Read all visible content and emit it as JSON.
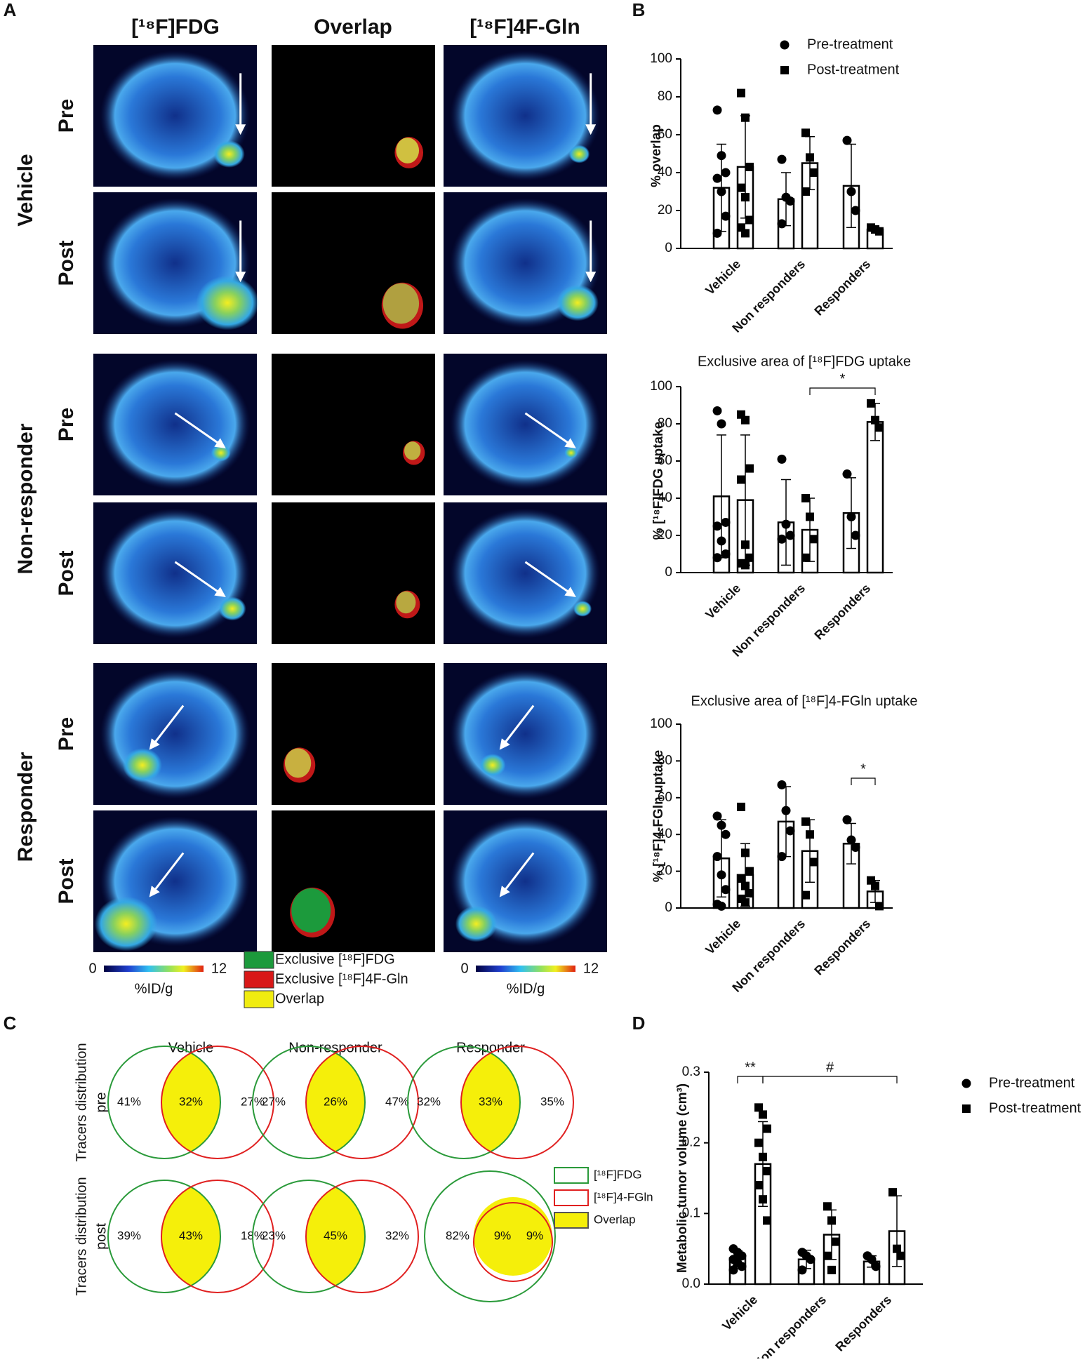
{
  "panel_labels": [
    "A",
    "B",
    "C",
    "D"
  ],
  "panel_a": {
    "columns": [
      "[¹⁸F]FDG",
      "Overlap",
      "[¹⁸F]4F-Gln"
    ],
    "groups": [
      {
        "name": "Vehicle",
        "rows": [
          "Pre",
          "Post"
        ]
      },
      {
        "name": "Non-responder",
        "rows": [
          "Pre",
          "Post"
        ]
      },
      {
        "name": "Responder",
        "rows": [
          "Pre",
          "Post"
        ]
      }
    ],
    "colorbars": [
      {
        "min": "0",
        "max": "12",
        "unit": "%ID/g"
      },
      {
        "min": "0",
        "max": "12",
        "unit": "%ID/g"
      }
    ],
    "legend": [
      "Exclusive [¹⁸F]FDG",
      "Exclusive [¹⁸F]4F-Gln",
      "Overlap"
    ]
  },
  "panel_c": {
    "columns": [
      "Vehicle",
      "Non-responder",
      "Responder"
    ],
    "rows": [
      {
        "label": [
          "Tracers distribution",
          "pre"
        ],
        "venns": [
          [
            "41%",
            "32%",
            "27%"
          ],
          [
            "27%",
            "26%",
            "47%"
          ],
          [
            "32%",
            "33%",
            "35%"
          ]
        ]
      },
      {
        "label": [
          "Tracers distribution",
          "post"
        ],
        "venns": [
          [
            "39%",
            "43%",
            "18%"
          ],
          [
            "23%",
            "45%",
            "32%"
          ],
          [
            "82%",
            "9%",
            "9%"
          ]
        ]
      }
    ],
    "legend": [
      "[¹⁸F]FDG",
      "[¹⁸F]4-FGln",
      "Overlap"
    ]
  },
  "chart_data": [
    {
      "type": "bar",
      "ylabel": "% overlap",
      "categories": [
        "Vehicle",
        "Non responders",
        "Responders"
      ],
      "ylim": [
        0,
        100
      ],
      "yticks": [
        0,
        20,
        40,
        60,
        80,
        100
      ],
      "legend": "top",
      "series": [
        {
          "name": "Pre-treatment",
          "marker": "circle",
          "color": "#000000",
          "values": [
            32,
            26,
            33
          ],
          "errors": [
            23,
            14,
            22
          ],
          "points": [
            [
              73,
              49,
              40,
              37,
              30,
              17,
              8
            ],
            [
              47,
              27,
              25,
              13
            ],
            [
              57,
              30,
              20
            ]
          ]
        },
        {
          "name": "Post-treatment",
          "marker": "square",
          "color": "#000000",
          "values": [
            43,
            45,
            10
          ],
          "errors": [
            27,
            14,
            1
          ],
          "points": [
            [
              82,
              69,
              43,
              32,
              27,
              15,
              11,
              8
            ],
            [
              61,
              48,
              40,
              30
            ],
            [
              11,
              10,
              9
            ]
          ]
        }
      ]
    },
    {
      "type": "bar",
      "title": "Exclusive area of [¹⁸F]FDG uptake",
      "ylabel": "% [¹⁸F]FDG uptake",
      "categories": [
        "Vehicle",
        "Non responders",
        "Responders"
      ],
      "ylim": [
        0,
        100
      ],
      "yticks": [
        0,
        20,
        40,
        60,
        80,
        100
      ],
      "legend": false,
      "annotations": [
        "*"
      ],
      "series": [
        {
          "name": "Pre-treatment",
          "marker": "circle",
          "color": "#000000",
          "values": [
            41,
            27,
            32
          ],
          "errors": [
            33,
            23,
            19
          ],
          "points": [
            [
              87,
              80,
              27,
              25,
              17,
              10,
              8
            ],
            [
              61,
              26,
              20,
              18
            ],
            [
              53,
              30,
              20
            ]
          ]
        },
        {
          "name": "Post-treatment",
          "marker": "square",
          "color": "#000000",
          "values": [
            39,
            23,
            81
          ],
          "errors": [
            35,
            17,
            10
          ],
          "points": [
            [
              85,
              82,
              56,
              50,
              15,
              8,
              5,
              4
            ],
            [
              40,
              30,
              18,
              8
            ],
            [
              91,
              82,
              78
            ]
          ]
        }
      ]
    },
    {
      "type": "bar",
      "title": "Exclusive area of [¹⁸F]4-FGln uptake",
      "ylabel": "% [¹⁸F]4-FGln uptake",
      "categories": [
        "Vehicle",
        "Non responders",
        "Responders"
      ],
      "ylim": [
        0,
        100
      ],
      "yticks": [
        0,
        20,
        40,
        60,
        80,
        100
      ],
      "legend": false,
      "annotations": [
        "*"
      ],
      "series": [
        {
          "name": "Pre-treatment",
          "marker": "circle",
          "color": "#000000",
          "values": [
            27,
            47,
            35
          ],
          "errors": [
            21,
            19,
            11
          ],
          "points": [
            [
              50,
              45,
              40,
              28,
              18,
              10,
              2,
              1
            ],
            [
              67,
              53,
              42,
              28
            ],
            [
              48,
              37,
              33
            ]
          ]
        },
        {
          "name": "Post-treatment",
          "marker": "square",
          "color": "#000000",
          "values": [
            18,
            31,
            9
          ],
          "errors": [
            17,
            17,
            6
          ],
          "points": [
            [
              55,
              30,
              20,
              16,
              12,
              8,
              5,
              3
            ],
            [
              47,
              40,
              25,
              7
            ],
            [
              15,
              12,
              1
            ]
          ]
        }
      ]
    },
    {
      "type": "bar",
      "ylabel": "Metabolic tumor volume (cm³)",
      "categories": [
        "Vehicle",
        "Non responders",
        "Responders"
      ],
      "ylim": [
        0,
        0.3
      ],
      "yticks": [
        {
          "value": 0,
          "label": "0.0"
        },
        0.1,
        0.2,
        0.3
      ],
      "legend": "right",
      "annotations": [
        "**",
        "#"
      ],
      "series": [
        {
          "name": "Pre-treatment",
          "marker": "circle",
          "color": "#000000",
          "values": [
            0.037,
            0.035,
            0.032
          ],
          "errors": [
            0.01,
            0.013,
            0.008
          ],
          "points": [
            [
              0.05,
              0.045,
              0.04,
              0.035,
              0.03,
              0.025,
              0.02
            ],
            [
              0.045,
              0.04,
              0.035,
              0.02
            ],
            [
              0.04,
              0.035,
              0.025
            ]
          ]
        },
        {
          "name": "Post-treatment",
          "marker": "square",
          "color": "#000000",
          "values": [
            0.17,
            0.07,
            0.075
          ],
          "errors": [
            0.06,
            0.035,
            0.05
          ],
          "points": [
            [
              0.25,
              0.24,
              0.22,
              0.2,
              0.18,
              0.16,
              0.14,
              0.12,
              0.09
            ],
            [
              0.11,
              0.09,
              0.06,
              0.04,
              0.02
            ],
            [
              0.13,
              0.05,
              0.04
            ]
          ]
        }
      ]
    }
  ]
}
